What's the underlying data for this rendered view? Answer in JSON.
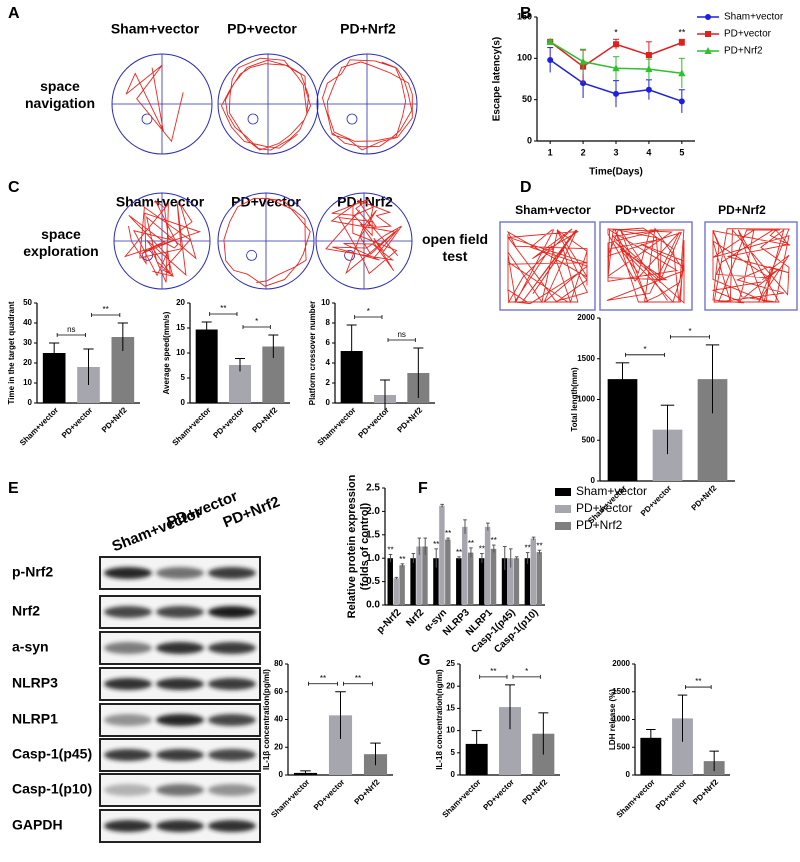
{
  "panels": {
    "A": {
      "letter": "A",
      "columns": [
        "Sham+vector",
        "PD+vector",
        "PD+Nrf2"
      ],
      "row_label": "space navigation"
    },
    "B": {
      "letter": "B"
    },
    "C": {
      "letter": "C",
      "columns": [
        "Sham+vector",
        "PD+vector",
        "PD+Nrf2"
      ],
      "row_label": "space exploration"
    },
    "D": {
      "letter": "D",
      "columns": [
        "Sham+vector",
        "PD+vector",
        "PD+Nrf2"
      ],
      "row_label": "open field test"
    },
    "E": {
      "letter": "E",
      "columns": [
        "Sham+vector",
        "PD+vector",
        "PD+Nrf2"
      ],
      "rows": [
        "p-Nrf2",
        "Nrf2",
        "a-syn",
        "NLRP3",
        "NLRP1",
        "Casp-1(p45)",
        "Casp-1(p10)",
        "GAPDH"
      ]
    },
    "F": {
      "letter": "F"
    },
    "G": {
      "letter": "G"
    }
  },
  "chart_data": [
    {
      "type": "line",
      "xlabel": "Time(Days)",
      "ylabel": "Escape latency(s)",
      "x": [
        1,
        2,
        3,
        4,
        5
      ],
      "xlim": [
        0.6,
        5.4
      ],
      "xticks": [
        1,
        2,
        3,
        4,
        5
      ],
      "ylim": [
        0,
        150
      ],
      "yticks": [
        0,
        50,
        100,
        150
      ],
      "legend": "top-right",
      "series": [
        {
          "name": "Sham+vector",
          "color": "#1f1fe0",
          "marker": "circle",
          "values": [
            98,
            70,
            57,
            62,
            48
          ],
          "errors": [
            15,
            18,
            16,
            12,
            14
          ]
        },
        {
          "name": "PD+vector",
          "color": "#e01f1f",
          "marker": "square",
          "values": [
            120,
            90,
            117,
            104,
            119
          ],
          "errors": [
            2,
            20,
            6,
            16,
            4
          ]
        },
        {
          "name": "PD+Nrf2",
          "color": "#2fbf2f",
          "marker": "triangle",
          "values": [
            120,
            96,
            88,
            87,
            82
          ],
          "errors": [
            2,
            15,
            14,
            12,
            18
          ]
        }
      ],
      "annotations": [
        {
          "x": 3,
          "text": "*"
        },
        {
          "x": 5,
          "text": "**"
        }
      ]
    },
    {
      "type": "bar",
      "ylabel": "Time in the target quadrant",
      "categories": [
        "Sham+vector",
        "PD+vector",
        "PD+Nrf2"
      ],
      "values": [
        25,
        18,
        33
      ],
      "errors": [
        5,
        9,
        7
      ],
      "colors": [
        "#000000",
        "#a6a6ae",
        "#7f7f7f"
      ],
      "ylim": [
        0,
        50
      ],
      "yticks": [
        0,
        10,
        20,
        30,
        40,
        50
      ],
      "comparisons": [
        {
          "from": "Sham+vector",
          "to": "PD+vector",
          "label": "ns"
        },
        {
          "from": "PD+vector",
          "to": "PD+Nrf2",
          "label": "**"
        }
      ]
    },
    {
      "type": "bar",
      "ylabel": "Average speed(mm/s)",
      "categories": [
        "Sham+vector",
        "PD+vector",
        "PD+Nrf2"
      ],
      "values": [
        14.7,
        7.6,
        11.3
      ],
      "errors": [
        1.5,
        1.3,
        2.3
      ],
      "colors": [
        "#000000",
        "#a6a6ae",
        "#7f7f7f"
      ],
      "ylim": [
        0,
        20
      ],
      "yticks": [
        0,
        5,
        10,
        15,
        20
      ],
      "comparisons": [
        {
          "from": "Sham+vector",
          "to": "PD+vector",
          "label": "**"
        },
        {
          "from": "PD+vector",
          "to": "PD+Nrf2",
          "label": "*"
        }
      ]
    },
    {
      "type": "bar",
      "ylabel": "Platform crossover number",
      "categories": [
        "Sham+vector",
        "PD+vector",
        "PD+Nrf2"
      ],
      "values": [
        5.2,
        0.8,
        3
      ],
      "errors": [
        2.6,
        1.5,
        2.5
      ],
      "colors": [
        "#000000",
        "#a6a6ae",
        "#7f7f7f"
      ],
      "ylim": [
        0,
        10
      ],
      "yticks": [
        0,
        2,
        4,
        6,
        8,
        10
      ],
      "comparisons": [
        {
          "from": "Sham+vector",
          "to": "PD+vector",
          "label": "*"
        },
        {
          "from": "PD+vector",
          "to": "PD+Nrf2",
          "label": "ns"
        }
      ]
    },
    {
      "type": "bar",
      "ylabel": "Total length(mm)",
      "categories": [
        "Sham+vector",
        "PD+vector",
        "PD+Nrf2"
      ],
      "values": [
        1250,
        630,
        1250
      ],
      "errors": [
        200,
        300,
        420
      ],
      "colors": [
        "#000000",
        "#a6a6ae",
        "#7f7f7f"
      ],
      "ylim": [
        0,
        2000
      ],
      "yticks": [
        0,
        500,
        1000,
        1500,
        2000
      ],
      "comparisons": [
        {
          "from": "Sham+vector",
          "to": "PD+vector",
          "label": "*"
        },
        {
          "from": "PD+vector",
          "to": "PD+Nrf2",
          "label": "*"
        }
      ]
    },
    {
      "type": "grouped-bar",
      "ylabel": [
        "Relative protein expression",
        "(folds of control)"
      ],
      "categories": [
        "p-Nrf2",
        "Nrf2",
        "α-syn",
        "NLRP3",
        "NLRP1",
        "Casp-1(p45)",
        "Casp-1(p10)"
      ],
      "ylim": [
        0,
        2.5
      ],
      "yticks": [
        {
          "value": 0,
          "label": "0.0"
        },
        0.5,
        {
          "value": 1,
          "label": "1.0"
        },
        1.5,
        {
          "value": 2,
          "label": "2.0"
        },
        2.5
      ],
      "legend": "top-right",
      "series": [
        {
          "name": "Sham+vector",
          "color": "#000000",
          "values": [
            1,
            1,
            1,
            1,
            1,
            1,
            1
          ],
          "errors": [
            0.08,
            0.1,
            0.2,
            0.03,
            0.1,
            0.25,
            0.12
          ],
          "annotations": [
            "**",
            null,
            "**",
            "**",
            "**",
            null,
            "**"
          ]
        },
        {
          "name": "PD+vector",
          "color": "#a6a6ae",
          "values": [
            0.57,
            1.25,
            2.12,
            1.67,
            1.67,
            1.0,
            1.42
          ],
          "errors": [
            0.02,
            0.18,
            0.03,
            0.15,
            0.08,
            0.2,
            0.03
          ],
          "annotations": [
            null,
            null,
            null,
            null,
            null,
            null,
            null
          ]
        },
        {
          "name": "PD+Nrf2",
          "color": "#7f7f7f",
          "values": [
            0.85,
            1.25,
            1.4,
            1.12,
            1.2,
            1.0,
            1.13
          ],
          "errors": [
            0.03,
            0.18,
            0.03,
            0.1,
            0.08,
            0.03,
            0.04
          ],
          "annotations": [
            "**",
            null,
            "**",
            "**",
            "**",
            null,
            "**"
          ]
        }
      ]
    },
    {
      "type": "bar",
      "ylabel": "IL-1β concentration(pg/ml)",
      "categories": [
        "Sham+vector",
        "PD+vector",
        "PD+Nrf2"
      ],
      "values": [
        1.5,
        43,
        15
      ],
      "errors": [
        1.5,
        17,
        8
      ],
      "colors": [
        "#000000",
        "#a6a6ae",
        "#7f7f7f"
      ],
      "ylim": [
        0,
        80
      ],
      "yticks": [
        0,
        20,
        40,
        60,
        80
      ],
      "comparisons": [
        {
          "from": "Sham+vector",
          "to": "PD+vector",
          "label": "**"
        },
        {
          "from": "PD+vector",
          "to": "PD+Nrf2",
          "label": "**"
        }
      ]
    },
    {
      "type": "bar",
      "ylabel": "IL-18 concentration(ng/ml)",
      "categories": [
        "Sham+vector",
        "PD+vector",
        "PD+Nrf2"
      ],
      "values": [
        7,
        15.3,
        9.3
      ],
      "errors": [
        3,
        5,
        4.7
      ],
      "colors": [
        "#000000",
        "#a6a6ae",
        "#7f7f7f"
      ],
      "ylim": [
        0,
        25
      ],
      "yticks": [
        0,
        5,
        10,
        15,
        20,
        25
      ],
      "comparisons": [
        {
          "from": "Sham+vector",
          "to": "PD+vector",
          "label": "**"
        },
        {
          "from": "PD+vector",
          "to": "PD+Nrf2",
          "label": "*"
        }
      ]
    },
    {
      "type": "bar",
      "ylabel": "LDH release (%)",
      "categories": [
        "Sham+vector",
        "PD+vector",
        "PD+Nrf2"
      ],
      "values": [
        670,
        1020,
        250
      ],
      "errors": [
        150,
        420,
        180
      ],
      "colors": [
        "#000000",
        "#a6a6ae",
        "#7f7f7f"
      ],
      "ylim": [
        0,
        2000
      ],
      "yticks": [
        0,
        500,
        1000,
        1500,
        2000
      ],
      "comparisons": [
        {
          "from": "PD+vector",
          "to": "PD+Nrf2",
          "label": "**"
        }
      ]
    }
  ]
}
